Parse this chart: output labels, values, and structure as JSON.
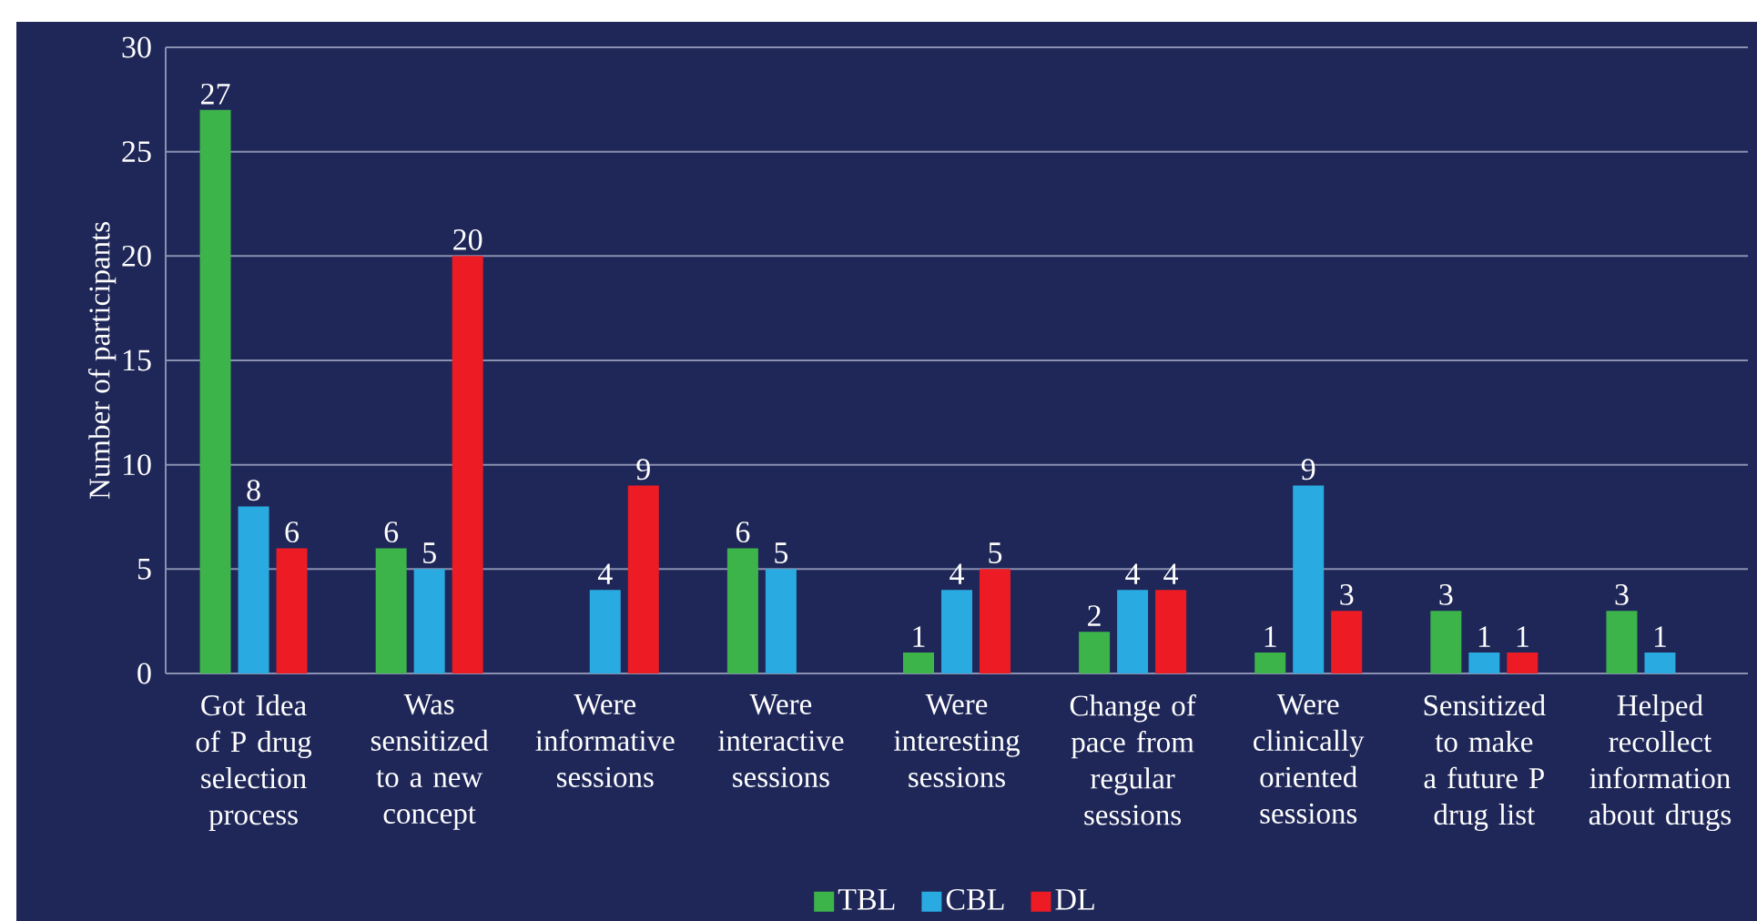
{
  "chart_data": {
    "type": "bar",
    "ylabel": "Number of participants",
    "categories": [
      "Got Idea of P drug selection process",
      "Was sensitized to a new concept",
      "Were informative sessions",
      "Were interactive sessions",
      "Were interesting sessions",
      "Change of pace from regular sessions",
      "Were clinically oriented sessions",
      "Sensitized to make a future P drug list",
      "Helped recollect information about drugs"
    ],
    "series": [
      {
        "name": "TBL",
        "color": "#3cb44a",
        "values": [
          27,
          6,
          null,
          6,
          1,
          2,
          1,
          3,
          3
        ]
      },
      {
        "name": "CBL",
        "color": "#29abe2",
        "values": [
          8,
          5,
          4,
          5,
          4,
          4,
          9,
          1,
          1
        ]
      },
      {
        "name": "DL",
        "color": "#ed1c24",
        "values": [
          6,
          20,
          9,
          null,
          5,
          4,
          3,
          1,
          null
        ]
      }
    ],
    "ylim": [
      0,
      30
    ],
    "yticks": [
      0,
      5,
      10,
      15,
      20,
      25,
      30
    ],
    "grid": "y",
    "legend": "bottom",
    "data_labels": true
  }
}
